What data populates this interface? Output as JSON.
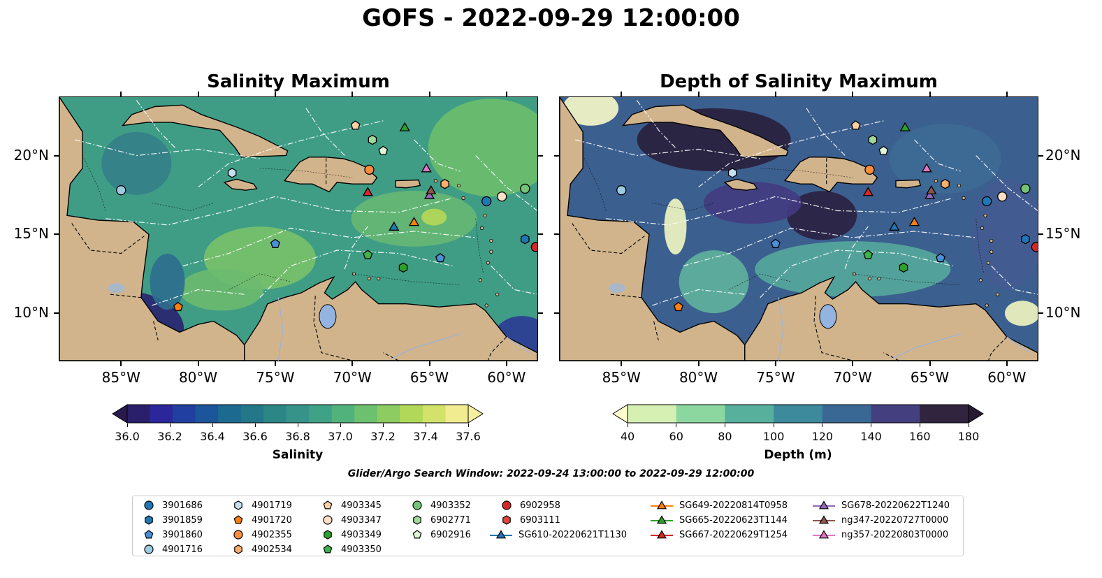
{
  "title": "GOFS - 2022-09-29 12:00:00",
  "panels": [
    {
      "id": "salinity",
      "title": "Salinity Maximum"
    },
    {
      "id": "depth",
      "title": "Depth of Salinity Maximum"
    }
  ],
  "axes": {
    "lon_ticks": [
      "85°W",
      "80°W",
      "75°W",
      "70°W",
      "65°W",
      "60°W"
    ],
    "lon_values": [
      -85,
      -80,
      -75,
      -70,
      -65,
      -60
    ],
    "lat_ticks": [
      "20°N",
      "15°N",
      "10°N"
    ],
    "lat_values": [
      20,
      15,
      10
    ],
    "lon_range": [
      -89,
      -58
    ],
    "lat_range": [
      7,
      23.7
    ]
  },
  "colorbars": {
    "salinity": {
      "title": "Salinity",
      "ticks": [
        "36.0",
        "36.2",
        "36.4",
        "36.6",
        "36.8",
        "37.0",
        "37.2",
        "37.4",
        "37.6"
      ],
      "colors": [
        "#2a1f6a",
        "#2b279a",
        "#213fa0",
        "#1b559a",
        "#1d6a90",
        "#227788",
        "#2d8686",
        "#36938a",
        "#3fa286",
        "#52b27c",
        "#6cc06e",
        "#8ccc60",
        "#b2d85a",
        "#d2e26a",
        "#f1ec90"
      ],
      "extend_low": "#281a4e",
      "extend_high": "#f6f0a0"
    },
    "depth": {
      "title": "Depth (m)",
      "ticks": [
        "40",
        "60",
        "80",
        "100",
        "120",
        "140",
        "160",
        "180"
      ],
      "colors": [
        "#d6efb3",
        "#8cd6a0",
        "#57b09c",
        "#3d8a9c",
        "#3a6894",
        "#443f7e",
        "#30243f"
      ],
      "extend_low": "#fefecf",
      "extend_high": "#281a33"
    }
  },
  "search_window": "Glider/Argo Search Window: 2022-09-24 13:00:00 to 2022-09-29 12:00:00",
  "colors": {
    "land": "#d2b48c",
    "lake": "#93b3e0",
    "salinity_base": "#3f9d86",
    "depth_base": "#3b5f8f"
  },
  "legend": [
    {
      "label": "3901686",
      "marker": "circle",
      "color": "#1f77b4"
    },
    {
      "label": "3901859",
      "marker": "hexagon",
      "color": "#1f77b4"
    },
    {
      "label": "3901860",
      "marker": "pentagon",
      "color": "#4a90d9"
    },
    {
      "label": "4901716",
      "marker": "circle",
      "color": "#9ecae1"
    },
    {
      "label": "4901719",
      "marker": "hexagon",
      "color": "#c6e2f2"
    },
    {
      "label": "4901720",
      "marker": "pentagon",
      "color": "#ff7f0e"
    },
    {
      "label": "4902355",
      "marker": "circle",
      "color": "#fd8d3c"
    },
    {
      "label": "4902534",
      "marker": "hexagon",
      "color": "#fdae6b"
    },
    {
      "label": "4903345",
      "marker": "pentagon",
      "color": "#fdd0a2"
    },
    {
      "label": "4903347",
      "marker": "circle",
      "color": "#fee0c8"
    },
    {
      "label": "4903349",
      "marker": "hexagon",
      "color": "#2ca02c"
    },
    {
      "label": "4903350",
      "marker": "pentagon",
      "color": "#3cb44b"
    },
    {
      "label": "4903352",
      "marker": "circle",
      "color": "#74c476"
    },
    {
      "label": "6902771",
      "marker": "hexagon",
      "color": "#a1d99b"
    },
    {
      "label": "6902916",
      "marker": "pentagon",
      "color": "#dff5d8"
    },
    {
      "label": "6902958",
      "marker": "circle",
      "color": "#d62728"
    },
    {
      "label": "6903111",
      "marker": "hexagon",
      "color": "#e0443c"
    },
    {
      "label": "SG610-20220621T1130",
      "marker": "triangle",
      "color": "#1f77b4",
      "line": true
    },
    {
      "label": "SG649-20220814T0958",
      "marker": "triangle",
      "color": "#ff7f0e",
      "line": true
    },
    {
      "label": "SG665-20220623T1144",
      "marker": "triangle",
      "color": "#2ca02c",
      "line": true
    },
    {
      "label": "SG667-20220629T1254",
      "marker": "triangle",
      "color": "#d62728",
      "line": true
    },
    {
      "label": "SG678-20220622T1240",
      "marker": "triangle",
      "color": "#9467bd",
      "line": true
    },
    {
      "label": "ng347-20220727T0000",
      "marker": "triangle",
      "color": "#8c564b",
      "line": true
    },
    {
      "label": "ng357-20220803T0000",
      "marker": "triangle",
      "color": "#e377c2",
      "line": true
    }
  ],
  "platforms": [
    {
      "id": "3901686",
      "lon": -61.3,
      "lat": 17.1
    },
    {
      "id": "3901859",
      "lon": -58.8,
      "lat": 14.7
    },
    {
      "id": "3901860",
      "lon": -64.3,
      "lat": 13.5
    },
    {
      "id": "3901860",
      "lon": -75.0,
      "lat": 14.4
    },
    {
      "id": "4901716",
      "lon": -85.0,
      "lat": 17.8
    },
    {
      "id": "4901719",
      "lon": -77.8,
      "lat": 18.9
    },
    {
      "id": "4901720",
      "lon": -81.3,
      "lat": 10.4
    },
    {
      "id": "4902355",
      "lon": -68.9,
      "lat": 19.1
    },
    {
      "id": "4902534",
      "lon": -64.0,
      "lat": 18.2
    },
    {
      "id": "4903345",
      "lon": -69.8,
      "lat": 21.9
    },
    {
      "id": "4903347",
      "lon": -60.3,
      "lat": 17.4
    },
    {
      "id": "4903349",
      "lon": -66.7,
      "lat": 12.9
    },
    {
      "id": "4903350",
      "lon": -69.0,
      "lat": 13.7
    },
    {
      "id": "4903352",
      "lon": -58.8,
      "lat": 17.9
    },
    {
      "id": "6902771",
      "lon": -68.7,
      "lat": 21.0
    },
    {
      "id": "6902916",
      "lon": -68.0,
      "lat": 20.3
    },
    {
      "id": "6902958",
      "lon": -58.1,
      "lat": 14.2
    },
    {
      "id": "SG610-20220621T1130",
      "lon": -67.3,
      "lat": 15.5
    },
    {
      "id": "SG649-20220814T0958",
      "lon": -66.0,
      "lat": 15.8
    },
    {
      "id": "SG665-20220623T1144",
      "lon": -66.6,
      "lat": 21.8
    },
    {
      "id": "SG667-20220629T1254",
      "lon": -69.0,
      "lat": 17.7
    },
    {
      "id": "SG678-20220622T1240",
      "lon": -65.0,
      "lat": 17.5
    },
    {
      "id": "ng347-20220727T0000",
      "lon": -64.9,
      "lat": 17.8
    },
    {
      "id": "ng357-20220803T0000",
      "lon": -65.2,
      "lat": 19.2
    }
  ]
}
